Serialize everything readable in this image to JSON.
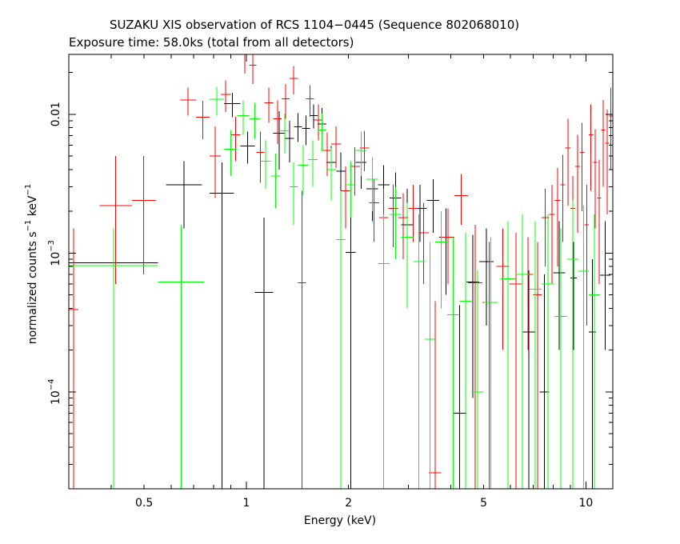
{
  "title": "SUZAKU XIS observation of RCS 1104−0445 (Sequence 802068010)",
  "subtitle": "Exposure time: 58.0ks (total from all detectors)",
  "chart_data": {
    "type": "scatter",
    "title": "SUZAKU XIS observation of RCS 1104−0445 (Sequence 802068010)",
    "subtitle": "Exposure time: 58.0ks (total from all detectors)",
    "xlabel": "Energy (keV)",
    "ylabel_parts": [
      "normalized counts s",
      "−1",
      " keV",
      "−1"
    ],
    "xscale": "log",
    "yscale": "log",
    "xlim": [
      0.3,
      12
    ],
    "ylim": [
      2e-05,
      0.027
    ],
    "xticks": [
      {
        "value": 0.5,
        "label": "0.5"
      },
      {
        "value": 1,
        "label": "1"
      },
      {
        "value": 2,
        "label": "2"
      },
      {
        "value": 5,
        "label": "5"
      },
      {
        "value": 10,
        "label": "10"
      }
    ],
    "yticks": [
      {
        "value": 0.0001,
        "base": "10",
        "exp": "−4"
      },
      {
        "value": 0.001,
        "base": "10",
        "exp": "−3"
      },
      {
        "value": 0.01,
        "label": "0.01"
      }
    ],
    "series": [
      {
        "color": "#000000",
        "points": [
          [
            0.3,
            0.55,
            0.00085,
            2e-05,
            0.0015
          ],
          [
            0.58,
            0.74,
            0.0031,
            0.0015,
            0.0046
          ],
          [
            0.78,
            0.92,
            0.0027,
            2e-05,
            0.0045
          ],
          [
            0.86,
            0.96,
            0.0119,
            0.0095,
            0.0143
          ],
          [
            0.96,
            1.06,
            0.0059,
            0.0044,
            0.0075
          ],
          [
            1.06,
            1.2,
            0.00052,
            2e-05,
            0.0018
          ],
          [
            1.2,
            1.3,
            0.0073,
            0.004,
            0.0105
          ],
          [
            1.3,
            1.38,
            0.0067,
            0.0045,
            0.009
          ],
          [
            1.38,
            1.46,
            0.0081,
            0.0063,
            0.0102
          ],
          [
            1.46,
            1.54,
            0.0079,
            0.006,
            0.0098
          ],
          [
            1.54,
            1.62,
            0.0098,
            0.0079,
            0.0118
          ],
          [
            1.62,
            1.72,
            0.0085,
            0.0061,
            0.0111
          ],
          [
            1.72,
            1.84,
            0.0045,
            0.0032,
            0.0059
          ],
          [
            1.84,
            1.96,
            0.0039,
            0.0026,
            0.0053
          ],
          [
            1.96,
            2.1,
            0.00101,
            2e-05,
            0.0025
          ],
          [
            2.1,
            2.26,
            0.0045,
            0.0029,
            0.0061
          ],
          [
            2.26,
            2.44,
            0.0029,
            0.0017,
            0.0042
          ],
          [
            2.44,
            2.64,
            0.0031,
            0.0019,
            0.0043
          ],
          [
            2.64,
            2.86,
            0.0025,
            0.0012,
            0.0038
          ],
          [
            2.86,
            3.1,
            0.0016,
            0.0004,
            0.0029
          ],
          [
            3.1,
            3.4,
            0.0021,
            0.0012,
            0.0031
          ],
          [
            3.4,
            3.7,
            0.0024,
            0.0014,
            0.0034
          ],
          [
            3.7,
            4.05,
            0.0013,
            0.0005,
            0.0021
          ],
          [
            4.05,
            4.45,
            7e-05,
            2e-05,
            0.00042
          ],
          [
            4.45,
            4.85,
            0.00062,
            9e-05,
            0.00135
          ],
          [
            4.85,
            5.35,
            0.00087,
            0.0003,
            0.0015
          ],
          [
            6.5,
            7.1,
            0.00027,
            2e-05,
            0.00075
          ],
          [
            7.3,
            7.8,
            0.0001,
            2e-05,
            0.0007
          ],
          [
            8.0,
            8.7,
            0.00072,
            0.0002,
            0.0017
          ],
          [
            9.0,
            9.4,
            0.00066,
            0.0002,
            0.0012
          ],
          [
            10.2,
            10.7,
            0.00027,
            2e-05,
            0.0009
          ],
          [
            11.0,
            11.8,
            0.00069,
            0.0002,
            0.0017
          ]
        ]
      },
      {
        "color": "#ff0000",
        "points": [
          [
            0.3,
            0.32,
            0.00039,
            2e-05,
            0.0015
          ],
          [
            0.37,
            0.46,
            0.0022,
            0.0006,
            0.005
          ],
          [
            0.46,
            0.54,
            0.0024,
            0.0007,
            0.005
          ],
          [
            0.64,
            0.71,
            0.0127,
            0.0098,
            0.0156
          ],
          [
            0.71,
            0.78,
            0.0095,
            0.0066,
            0.0125
          ],
          [
            0.78,
            0.84,
            0.005,
            0.0025,
            0.0082
          ],
          [
            0.84,
            0.9,
            0.0139,
            0.0104,
            0.0175
          ],
          [
            0.9,
            0.96,
            0.0071,
            0.0046,
            0.0096
          ],
          [
            0.96,
            1.02,
            0.027,
            0.0196,
            0.027
          ],
          [
            1.02,
            1.07,
            0.0225,
            0.0165,
            0.027
          ],
          [
            1.07,
            1.13,
            0.0053,
            0.0032,
            0.0075
          ],
          [
            1.13,
            1.2,
            0.0121,
            0.0087,
            0.0156
          ],
          [
            1.2,
            1.27,
            0.0093,
            0.0061,
            0.0126
          ],
          [
            1.27,
            1.34,
            0.0129,
            0.0093,
            0.0165
          ],
          [
            1.34,
            1.42,
            0.0181,
            0.0139,
            0.0223
          ],
          [
            1.42,
            1.5,
            0.00061,
            2e-05,
            0.0028
          ],
          [
            1.5,
            1.58,
            0.0129,
            0.0096,
            0.0162
          ],
          [
            1.58,
            1.68,
            0.0091,
            0.0065,
            0.0118
          ],
          [
            1.68,
            1.78,
            0.0055,
            0.0036,
            0.0074
          ],
          [
            1.78,
            1.9,
            0.0061,
            0.0041,
            0.0082
          ],
          [
            1.9,
            2.02,
            0.0028,
            0.0015,
            0.0042
          ],
          [
            2.02,
            2.16,
            0.0042,
            0.0026,
            0.0058
          ],
          [
            2.16,
            2.3,
            0.0057,
            0.0039,
            0.0076
          ],
          [
            2.3,
            2.46,
            0.0023,
            0.0012,
            0.0034
          ],
          [
            2.46,
            2.62,
            0.0018,
            0.0008,
            0.0029
          ],
          [
            2.62,
            2.8,
            0.0021,
            0.0011,
            0.0031
          ],
          [
            2.8,
            3.0,
            0.0018,
            0.0009,
            0.0027
          ],
          [
            3.0,
            3.2,
            0.0021,
            0.0012,
            0.0031
          ],
          [
            3.2,
            3.45,
            0.0014,
            0.0006,
            0.0023
          ],
          [
            3.45,
            3.75,
            2.6e-05,
            2e-05,
            0.00045
          ],
          [
            3.75,
            4.1,
            0.0013,
            0.0006,
            0.0021
          ],
          [
            4.1,
            4.5,
            0.0026,
            0.0016,
            0.0037
          ],
          [
            4.5,
            4.95,
            0.00061,
            2e-05,
            0.0016
          ],
          [
            4.95,
            5.45,
            0.00044,
            2e-05,
            0.0012
          ],
          [
            5.45,
            5.95,
            0.0008,
            0.0002,
            0.0015
          ],
          [
            5.95,
            6.5,
            0.0006,
            2e-05,
            0.0014
          ],
          [
            6.5,
            7.0,
            0.0007,
            0.0002,
            0.0013
          ],
          [
            7.0,
            7.4,
            0.0005,
            2e-05,
            0.0012
          ],
          [
            7.4,
            7.8,
            0.0018,
            0.0008,
            0.0029
          ],
          [
            7.8,
            8.1,
            0.0019,
            0.0006,
            0.0031
          ],
          [
            8.1,
            8.4,
            0.0024,
            0.0008,
            0.0041
          ],
          [
            8.4,
            8.7,
            0.0031,
            0.0012,
            0.0051
          ],
          [
            8.7,
            9.0,
            0.0057,
            0.0022,
            0.0093
          ],
          [
            9.0,
            9.3,
            0.0021,
            0.0006,
            0.0036
          ],
          [
            9.3,
            9.6,
            0.0042,
            0.0014,
            0.0071
          ],
          [
            9.6,
            9.9,
            0.0053,
            0.002,
            0.0087
          ],
          [
            9.9,
            10.2,
            0.0016,
            0.0003,
            0.0031
          ],
          [
            10.2,
            10.5,
            0.0071,
            0.0028,
            0.0118
          ],
          [
            10.5,
            10.8,
            0.0045,
            0.0015,
            0.0078
          ],
          [
            10.8,
            11.1,
            0.0025,
            0.0006,
            0.0047
          ],
          [
            11.1,
            11.4,
            0.0077,
            0.003,
            0.0127
          ],
          [
            11.4,
            11.7,
            0.0062,
            0.0019,
            0.0108
          ],
          [
            11.7,
            12.0,
            0.0097,
            0.004,
            0.0156
          ]
        ]
      },
      {
        "color": "#00ff00",
        "points": [
          [
            0.3,
            0.55,
            0.00081,
            2e-05,
            0.0015
          ],
          [
            0.55,
            0.75,
            0.00062,
            2e-05,
            0.0016
          ],
          [
            0.78,
            0.86,
            0.0128,
            0.0098,
            0.0158
          ],
          [
            0.86,
            0.94,
            0.0056,
            0.0036,
            0.0077
          ],
          [
            0.94,
            1.02,
            0.0098,
            0.0071,
            0.0126
          ],
          [
            1.02,
            1.1,
            0.0093,
            0.0066,
            0.0121
          ],
          [
            1.1,
            1.18,
            0.0046,
            0.0029,
            0.0065
          ],
          [
            1.18,
            1.26,
            0.0036,
            0.0021,
            0.0052
          ],
          [
            1.26,
            1.34,
            0.0076,
            0.0052,
            0.0101
          ],
          [
            1.34,
            1.42,
            0.003,
            0.0016,
            0.0045
          ],
          [
            1.42,
            1.52,
            0.0043,
            0.0026,
            0.006
          ],
          [
            1.52,
            1.62,
            0.0047,
            0.003,
            0.0065
          ],
          [
            1.62,
            1.72,
            0.0077,
            0.0054,
            0.0101
          ],
          [
            1.72,
            1.84,
            0.004,
            0.0024,
            0.0057
          ],
          [
            1.84,
            1.96,
            0.00125,
            2e-05,
            0.0028
          ],
          [
            1.96,
            2.1,
            0.0031,
            0.0018,
            0.0046
          ],
          [
            2.1,
            2.26,
            0.0055,
            0.0036,
            0.0075
          ],
          [
            2.26,
            2.44,
            0.0034,
            0.002,
            0.0049
          ],
          [
            2.44,
            2.64,
            0.00084,
            2e-05,
            0.0019
          ],
          [
            2.64,
            2.86,
            0.0019,
            0.0009,
            0.003
          ],
          [
            2.86,
            3.1,
            0.0013,
            0.0004,
            0.0023
          ],
          [
            3.1,
            3.35,
            0.00087,
            2e-05,
            0.0019
          ],
          [
            3.35,
            3.6,
            0.00024,
            2e-05,
            0.0012
          ],
          [
            3.6,
            3.9,
            0.0012,
            0.0004,
            0.002
          ],
          [
            3.9,
            4.25,
            0.00036,
            2e-05,
            0.0013
          ],
          [
            4.25,
            4.6,
            0.00045,
            2e-05,
            0.0014
          ],
          [
            4.6,
            5.0,
            0.0001,
            2e-05,
            0.00075
          ],
          [
            5.0,
            5.5,
            0.00044,
            2e-05,
            0.0013
          ],
          [
            5.6,
            6.2,
            0.00065,
            2e-05,
            0.0017
          ],
          [
            6.2,
            6.8,
            0.0007,
            2e-05,
            0.0019
          ],
          [
            6.8,
            7.4,
            0.00055,
            2e-05,
            0.0017
          ],
          [
            7.4,
            8.1,
            0.0006,
            2e-05,
            0.0019
          ],
          [
            8.1,
            8.8,
            0.00035,
            2e-05,
            0.0015
          ],
          [
            8.8,
            9.5,
            0.0009,
            2e-05,
            0.0024
          ],
          [
            9.5,
            10.2,
            0.00074,
            2e-05,
            0.0022
          ],
          [
            10.2,
            11.0,
            0.0005,
            2e-05,
            0.0019
          ]
        ]
      }
    ]
  }
}
